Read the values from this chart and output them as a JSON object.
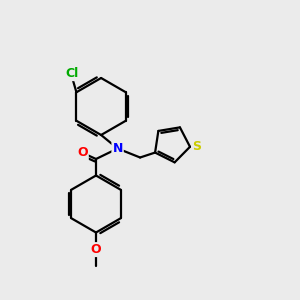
{
  "bg_color": "#ebebeb",
  "bond_color": "#000000",
  "bond_width": 1.6,
  "atom_colors": {
    "N": "#0000ff",
    "O": "#ff0000",
    "Cl": "#00aa00",
    "S": "#cccc00"
  },
  "font_size": 9,
  "figsize": [
    3.0,
    3.0
  ],
  "dpi": 100
}
